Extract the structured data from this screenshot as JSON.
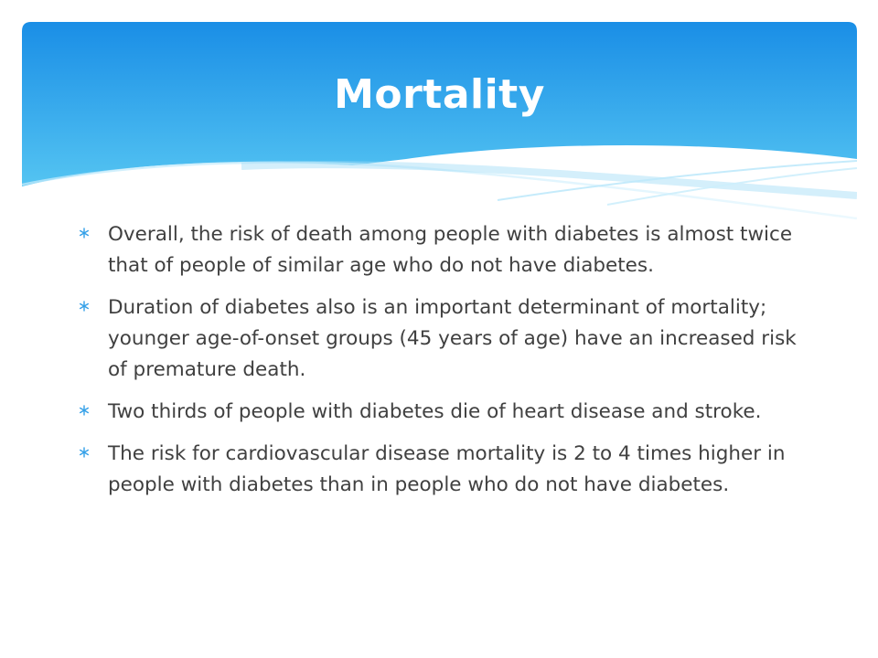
{
  "slide": {
    "title": "Mortality",
    "bullets": [
      {
        "text": "Overall, the risk of death among people with diabetes is almost twice that of people of similar age who do not have diabetes."
      },
      {
        "text": "Duration of diabetes also is an important determinant of mortality; younger age-of-onset groups (45 years of age) have an increased risk of premature death."
      },
      {
        "text": "Two thirds of people with diabetes die of heart disease and stroke."
      },
      {
        "text": "The risk for cardiovascular disease mortality is 2 to 4 times higher in people with diabetes than in people who do not have diabetes."
      }
    ],
    "bullet_icon": "asterisk-icon"
  },
  "colors": {
    "header_top": "#1a8ee6",
    "header_bottom": "#55c5f2",
    "title_text": "#ffffff",
    "body_text": "#404040",
    "bullet_icon": "#34a0e8"
  }
}
